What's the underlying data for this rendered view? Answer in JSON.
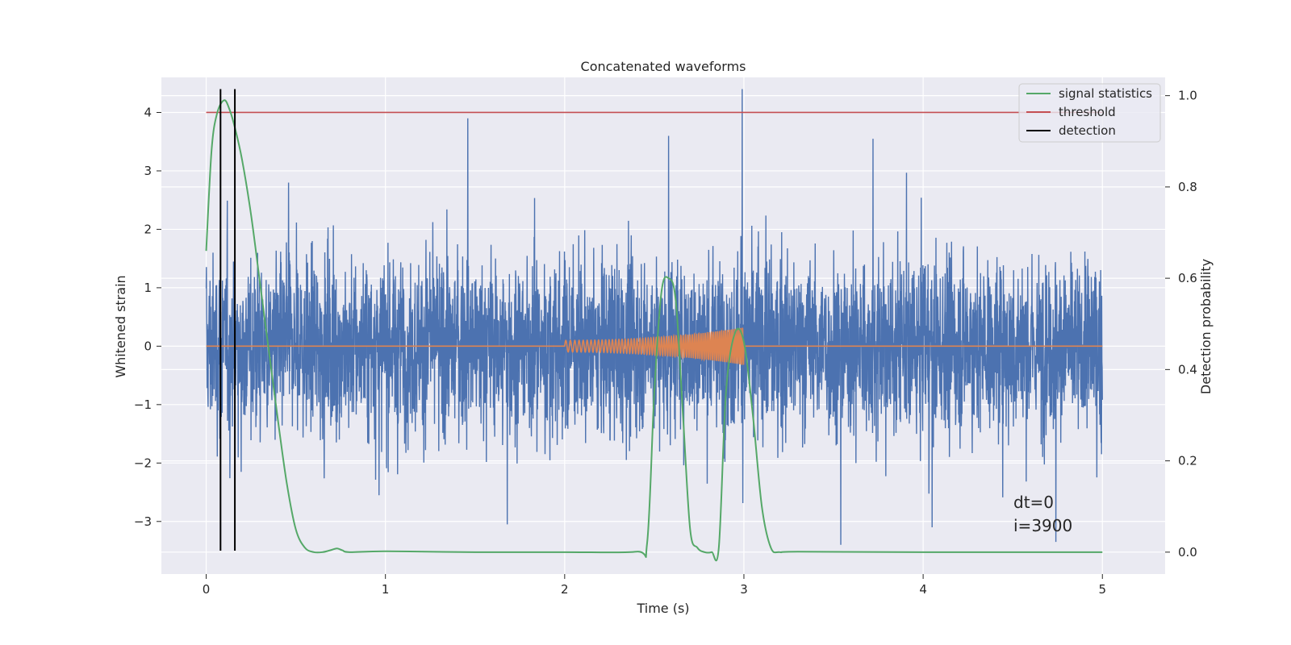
{
  "chart_data": {
    "type": "line",
    "title": "Concatenated waveforms",
    "xlabel": "Time (s)",
    "ylabel": "Whitened strain",
    "ylabel_right": "Detection probability",
    "xlim": [
      -0.25,
      5.35
    ],
    "ylim": [
      -3.9,
      4.6
    ],
    "ylim_right": [
      -0.048,
      1.04
    ],
    "xticks": [
      0,
      1,
      2,
      3,
      4,
      5
    ],
    "yticks": [
      -3,
      -2,
      -1,
      0,
      1,
      2,
      3,
      4
    ],
    "yticks_right": [
      0.0,
      0.2,
      0.4,
      0.6,
      0.8,
      1.0
    ],
    "ytick_labels": [
      "−3",
      "−2",
      "−1",
      "0",
      "1",
      "2",
      "3",
      "4"
    ],
    "yticks_right_labels": [
      "0.0",
      "0.2",
      "0.4",
      "0.6",
      "0.8",
      "1.0"
    ],
    "grid": true,
    "legend_position": "top-right",
    "colors": {
      "strain": "#4c72b0",
      "waveform": "#dd8452",
      "signal_statistics": "#55a868",
      "threshold": "#c44e52",
      "detection": "#000000",
      "background": "#eaeaf2",
      "grid": "#ffffff"
    },
    "strain": {
      "t_start": 0,
      "t_end": 5,
      "notable_peaks": [
        {
          "t": 0.46,
          "y": 2.8
        },
        {
          "t": 1.46,
          "y": 3.9
        },
        {
          "t": 1.68,
          "y": -3.05
        },
        {
          "t": 2.58,
          "y": 3.6
        },
        {
          "t": 2.99,
          "y": 4.4
        },
        {
          "t": 3.72,
          "y": 3.55
        },
        {
          "t": 3.54,
          "y": -3.5
        },
        {
          "t": 4.05,
          "y": -3.1
        },
        {
          "t": 4.74,
          "y": -3.35
        }
      ]
    },
    "waveform": {
      "t_start": 2.0,
      "t_end": 3.0,
      "amplitude_start": 0.1,
      "amplitude_end": 0.32
    },
    "series": [
      {
        "name": "signal statistics",
        "axis": "right",
        "x": [
          0,
          0.03,
          0.06,
          0.1,
          0.13,
          0.16,
          0.2,
          0.25,
          0.3,
          0.35,
          0.4,
          0.45,
          0.5,
          0.55,
          0.6,
          0.65,
          0.7,
          0.73,
          0.76,
          0.8,
          1.0,
          1.5,
          2.0,
          2.4,
          2.46,
          2.5,
          2.54,
          2.58,
          2.62,
          2.66,
          2.7,
          2.74,
          2.78,
          2.82,
          2.86,
          2.9,
          2.95,
          3.0,
          3.05,
          3.1,
          3.15,
          3.2,
          3.3,
          4.0,
          5.0
        ],
        "y": [
          0.66,
          0.88,
          0.96,
          0.99,
          0.97,
          0.93,
          0.86,
          0.74,
          0.59,
          0.44,
          0.29,
          0.15,
          0.05,
          0.01,
          0.0,
          0.0,
          0.005,
          0.008,
          0.004,
          0.0,
          0.002,
          0.0,
          0.0,
          0.001,
          0.02,
          0.35,
          0.57,
          0.6,
          0.55,
          0.3,
          0.05,
          0.01,
          0.0,
          0.0,
          0.01,
          0.35,
          0.48,
          0.46,
          0.3,
          0.1,
          0.01,
          0.0,
          0.001,
          0.0,
          0.0
        ]
      },
      {
        "name": "threshold",
        "axis": "left",
        "x": [
          0,
          5
        ],
        "y": [
          4.0,
          4.0
        ]
      },
      {
        "name": "detection",
        "axis": "left",
        "x_positions": [
          0.08,
          0.16
        ],
        "y_range": [
          -3.5,
          4.4
        ]
      }
    ],
    "annotation_lines": [
      "dt=0",
      "i=3900"
    ]
  }
}
